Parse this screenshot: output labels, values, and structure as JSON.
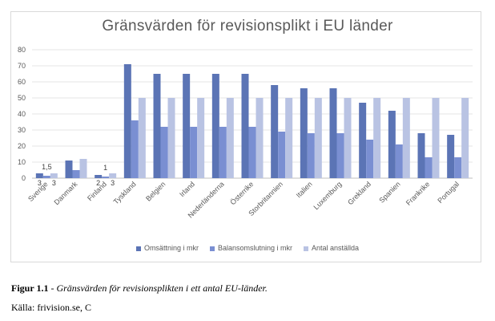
{
  "chart_data": {
    "type": "bar",
    "title": "Gränsvärden för revisionsplikt i EU länder",
    "categories": [
      "Sverige",
      "Danmark",
      "Finland",
      "Tyskland",
      "Belgien",
      "Irland",
      "Nederländerna",
      "Österrike",
      "Storbritannien",
      "Italien",
      "Luxemburg",
      "Grekland",
      "Spanien",
      "Frankrike",
      "Portugal"
    ],
    "series": [
      {
        "name": "Omsättning i mkr",
        "color": "#5b74b5",
        "values": [
          3,
          11,
          2,
          71,
          65,
          65,
          65,
          65,
          58,
          56,
          56,
          47,
          42,
          28,
          27
        ]
      },
      {
        "name": "Balansomslutning i mkr",
        "color": "#7a8fd2",
        "values": [
          1.5,
          5,
          1,
          36,
          32,
          32,
          32,
          32,
          29,
          28,
          28,
          24,
          21,
          13,
          13
        ]
      },
      {
        "name": "Antal anställda",
        "color": "#b9c3e3",
        "values": [
          3,
          12,
          3,
          50,
          50,
          50,
          50,
          50,
          50,
          50,
          50,
          50,
          50,
          50,
          50
        ]
      }
    ],
    "data_labels": [
      {
        "category": "Sverige",
        "series": "Omsättning i mkr",
        "text": "3"
      },
      {
        "category": "Sverige",
        "series": "Balansomslutning i mkr",
        "text": "1,5"
      },
      {
        "category": "Sverige",
        "series": "Antal anställda",
        "text": "3"
      },
      {
        "category": "Finland",
        "series": "Omsättning i mkr",
        "text": "2"
      },
      {
        "category": "Finland",
        "series": "Balansomslutning i mkr",
        "text": "1"
      },
      {
        "category": "Finland",
        "series": "Antal anställda",
        "text": "3"
      }
    ],
    "y_ticks": [
      0,
      10,
      20,
      30,
      40,
      50,
      60,
      70,
      80
    ],
    "ylim": [
      0,
      80
    ],
    "grid": true,
    "legend_position": "bottom"
  },
  "caption": {
    "label": "Figur 1.1",
    "separator": " - ",
    "text": "Gränsvärden för revisionsplikten i ett antal EU-länder."
  },
  "source": "Källa: frivision.se, C"
}
